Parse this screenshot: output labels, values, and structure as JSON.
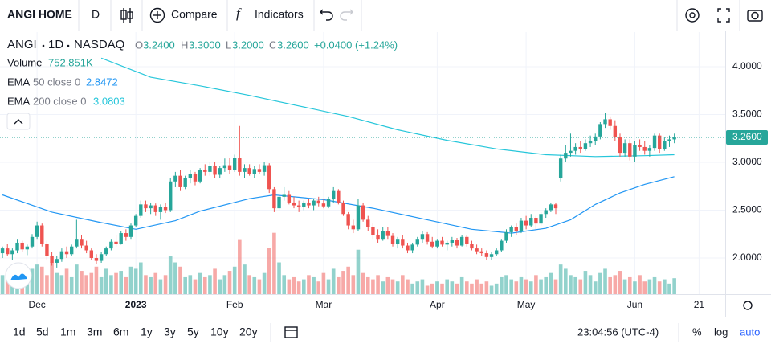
{
  "toolbar": {
    "symbol": "ANGI HOME",
    "interval": "D",
    "compare": "Compare",
    "indicators": "Indicators"
  },
  "legend": {
    "symbol": "ANGI",
    "interval": "1D",
    "exchange": "NASDAQ",
    "o_label": "O",
    "open": "3.2400",
    "h_label": "H",
    "high": "3.3000",
    "l_label": "L",
    "low": "3.2000",
    "c_label": "C",
    "close": "3.2600",
    "change": "+0.0400 (+1.24%)",
    "volume_label": "Volume",
    "volume": "752.851K",
    "ema50_label": "EMA",
    "ema50_params": "50 close 0",
    "ema50_value": "2.8472",
    "ema200_label": "EMA",
    "ema200_params": "200 close 0",
    "ema200_value": "3.0803"
  },
  "bottom": {
    "ranges": [
      "1d",
      "5d",
      "1m",
      "3m",
      "6m",
      "1y",
      "3y",
      "5y",
      "10y",
      "20y"
    ],
    "clock": "23:04:56 (UTC-4)",
    "percent": "%",
    "log": "log",
    "auto": "auto"
  },
  "chart_data": {
    "type": "candlestick",
    "up_color": "#26a69a",
    "down_color": "#ef5350",
    "ylim": [
      1.622,
      4.361
    ],
    "yticks": [
      {
        "value": 2,
        "label": "2.0000"
      },
      {
        "value": 2.5,
        "label": "2.5000"
      },
      {
        "value": 3,
        "label": "3.0000"
      },
      {
        "value": 3.5,
        "label": "3.5000"
      },
      {
        "value": 4,
        "label": "4.0000"
      }
    ],
    "xlim": [
      -0.5,
      146.3
    ],
    "xticks": [
      {
        "value": 7,
        "label": "Dec"
      },
      {
        "value": 27,
        "label": "2023"
      },
      {
        "value": 47,
        "label": "Feb"
      },
      {
        "value": 65,
        "label": "Mar"
      },
      {
        "value": 88,
        "label": "Apr"
      },
      {
        "value": 106,
        "label": "May"
      },
      {
        "value": 128,
        "label": "Jun"
      },
      {
        "value": 141,
        "label": "21"
      }
    ],
    "grid": true,
    "ohlc": [
      [
        2.05,
        2.12,
        2.0,
        2.1
      ],
      [
        2.1,
        2.15,
        2.02,
        2.04
      ],
      [
        2.04,
        2.1,
        1.98,
        2.08
      ],
      [
        2.08,
        2.2,
        2.05,
        2.16
      ],
      [
        2.16,
        2.18,
        2.06,
        2.09
      ],
      [
        2.09,
        2.14,
        2.03,
        2.12
      ],
      [
        2.12,
        2.25,
        2.1,
        2.22
      ],
      [
        2.22,
        2.38,
        2.2,
        2.34
      ],
      [
        2.34,
        2.36,
        2.12,
        2.15
      ],
      [
        2.15,
        2.18,
        1.98,
        2.02
      ],
      [
        2.02,
        2.06,
        1.92,
        1.95
      ],
      [
        1.95,
        2.02,
        1.9,
        1.99
      ],
      [
        1.99,
        2.1,
        1.96,
        2.07
      ],
      [
        2.07,
        2.12,
        2.0,
        2.04
      ],
      [
        2.04,
        2.14,
        2.02,
        2.12
      ],
      [
        2.12,
        2.4,
        2.1,
        2.2
      ],
      [
        2.2,
        2.24,
        2.1,
        2.13
      ],
      [
        2.13,
        2.18,
        2.05,
        2.08
      ],
      [
        2.08,
        2.1,
        1.98,
        2.0
      ],
      [
        2.0,
        2.04,
        1.94,
        1.97
      ],
      [
        1.97,
        2.06,
        1.95,
        2.04
      ],
      [
        2.04,
        2.12,
        2.02,
        2.1
      ],
      [
        2.1,
        2.2,
        2.08,
        2.17
      ],
      [
        2.17,
        2.24,
        2.12,
        2.15
      ],
      [
        2.15,
        2.28,
        2.14,
        2.26
      ],
      [
        2.26,
        2.3,
        2.18,
        2.22
      ],
      [
        2.22,
        2.36,
        2.2,
        2.34
      ],
      [
        2.34,
        2.46,
        2.32,
        2.44
      ],
      [
        2.44,
        2.6,
        2.42,
        2.56
      ],
      [
        2.56,
        2.6,
        2.48,
        2.52
      ],
      [
        2.52,
        2.58,
        2.46,
        2.55
      ],
      [
        2.55,
        2.57,
        2.44,
        2.48
      ],
      [
        2.48,
        2.56,
        2.4,
        2.53
      ],
      [
        2.53,
        2.58,
        2.47,
        2.5
      ],
      [
        2.5,
        2.84,
        2.48,
        2.8
      ],
      [
        2.8,
        2.9,
        2.74,
        2.86
      ],
      [
        2.86,
        2.92,
        2.7,
        2.74
      ],
      [
        2.74,
        2.86,
        2.72,
        2.84
      ],
      [
        2.84,
        2.92,
        2.78,
        2.88
      ],
      [
        2.88,
        2.9,
        2.76,
        2.8
      ],
      [
        2.8,
        2.94,
        2.78,
        2.92
      ],
      [
        2.92,
        2.98,
        2.86,
        2.9
      ],
      [
        2.9,
        3.0,
        2.86,
        2.96
      ],
      [
        2.96,
        3.0,
        2.84,
        2.87
      ],
      [
        2.87,
        2.96,
        2.84,
        2.94
      ],
      [
        2.94,
        3.04,
        2.9,
        2.97
      ],
      [
        2.97,
        3.05,
        2.88,
        2.92
      ],
      [
        2.92,
        3.08,
        2.9,
        3.05
      ],
      [
        3.05,
        3.38,
        2.86,
        2.9
      ],
      [
        2.9,
        2.98,
        2.84,
        2.94
      ],
      [
        2.94,
        2.98,
        2.86,
        2.88
      ],
      [
        2.88,
        2.96,
        2.84,
        2.93
      ],
      [
        2.93,
        2.98,
        2.88,
        2.9
      ],
      [
        2.9,
        3.0,
        2.86,
        2.97
      ],
      [
        2.97,
        2.99,
        2.68,
        2.72
      ],
      [
        2.72,
        2.74,
        2.48,
        2.52
      ],
      [
        2.52,
        2.66,
        2.5,
        2.64
      ],
      [
        2.64,
        2.74,
        2.6,
        2.66
      ],
      [
        2.66,
        2.7,
        2.56,
        2.58
      ],
      [
        2.58,
        2.64,
        2.52,
        2.55
      ],
      [
        2.55,
        2.6,
        2.48,
        2.53
      ],
      [
        2.53,
        2.6,
        2.5,
        2.58
      ],
      [
        2.58,
        2.62,
        2.52,
        2.55
      ],
      [
        2.55,
        2.62,
        2.5,
        2.6
      ],
      [
        2.6,
        2.64,
        2.54,
        2.57
      ],
      [
        2.57,
        2.62,
        2.52,
        2.54
      ],
      [
        2.54,
        2.64,
        2.52,
        2.62
      ],
      [
        2.62,
        2.74,
        2.58,
        2.7
      ],
      [
        2.7,
        2.72,
        2.56,
        2.58
      ],
      [
        2.58,
        2.6,
        2.44,
        2.46
      ],
      [
        2.46,
        2.48,
        2.3,
        2.34
      ],
      [
        2.34,
        2.4,
        2.26,
        2.3
      ],
      [
        2.3,
        2.62,
        2.28,
        2.55
      ],
      [
        2.55,
        2.58,
        2.38,
        2.4
      ],
      [
        2.4,
        2.44,
        2.28,
        2.32
      ],
      [
        2.32,
        2.36,
        2.2,
        2.24
      ],
      [
        2.24,
        2.3,
        2.16,
        2.2
      ],
      [
        2.2,
        2.32,
        2.18,
        2.28
      ],
      [
        2.28,
        2.32,
        2.2,
        2.23
      ],
      [
        2.23,
        2.26,
        2.12,
        2.15
      ],
      [
        2.15,
        2.22,
        2.1,
        2.2
      ],
      [
        2.2,
        2.24,
        2.1,
        2.13
      ],
      [
        2.13,
        2.16,
        2.05,
        2.08
      ],
      [
        2.08,
        2.16,
        2.05,
        2.14
      ],
      [
        2.14,
        2.22,
        2.12,
        2.2
      ],
      [
        2.2,
        2.28,
        2.16,
        2.25
      ],
      [
        2.25,
        2.27,
        2.14,
        2.17
      ],
      [
        2.17,
        2.22,
        2.1,
        2.12
      ],
      [
        2.12,
        2.2,
        2.1,
        2.18
      ],
      [
        2.18,
        2.22,
        2.12,
        2.14
      ],
      [
        2.14,
        2.18,
        2.08,
        2.16
      ],
      [
        2.16,
        2.22,
        2.12,
        2.19
      ],
      [
        2.19,
        2.21,
        2.1,
        2.13
      ],
      [
        2.13,
        2.24,
        2.12,
        2.22
      ],
      [
        2.22,
        2.24,
        2.12,
        2.15
      ],
      [
        2.15,
        2.18,
        2.08,
        2.1
      ],
      [
        2.1,
        2.14,
        2.04,
        2.07
      ],
      [
        2.07,
        2.1,
        2.02,
        2.05
      ],
      [
        2.05,
        2.08,
        1.98,
        2.01
      ],
      [
        2.01,
        2.06,
        1.98,
        2.04
      ],
      [
        2.04,
        2.1,
        2.02,
        2.08
      ],
      [
        2.08,
        2.2,
        2.06,
        2.18
      ],
      [
        2.18,
        2.3,
        2.16,
        2.27
      ],
      [
        2.27,
        2.34,
        2.22,
        2.32
      ],
      [
        2.32,
        2.36,
        2.24,
        2.28
      ],
      [
        2.28,
        2.42,
        2.26,
        2.39
      ],
      [
        2.39,
        2.44,
        2.3,
        2.34
      ],
      [
        2.34,
        2.46,
        2.32,
        2.42
      ],
      [
        2.42,
        2.44,
        2.3,
        2.36
      ],
      [
        2.36,
        2.48,
        2.34,
        2.46
      ],
      [
        2.46,
        2.52,
        2.42,
        2.5
      ],
      [
        2.5,
        2.58,
        2.48,
        2.56
      ],
      [
        2.56,
        2.58,
        2.46,
        2.52
      ],
      [
        2.84,
        3.08,
        2.8,
        3.04
      ],
      [
        3.04,
        3.18,
        3.0,
        3.1
      ],
      [
        3.1,
        3.3,
        3.06,
        3.12
      ],
      [
        3.12,
        3.2,
        3.08,
        3.16
      ],
      [
        3.16,
        3.22,
        3.1,
        3.14
      ],
      [
        3.14,
        3.24,
        3.12,
        3.2
      ],
      [
        3.2,
        3.28,
        3.16,
        3.22
      ],
      [
        3.22,
        3.3,
        3.18,
        3.27
      ],
      [
        3.27,
        3.42,
        3.24,
        3.4
      ],
      [
        3.4,
        3.52,
        3.36,
        3.45
      ],
      [
        3.45,
        3.48,
        3.34,
        3.38
      ],
      [
        3.38,
        3.44,
        3.22,
        3.26
      ],
      [
        3.26,
        3.3,
        3.06,
        3.1
      ],
      [
        3.1,
        3.24,
        3.06,
        3.2
      ],
      [
        3.2,
        3.24,
        3.02,
        3.06
      ],
      [
        3.06,
        3.22,
        3.0,
        3.18
      ],
      [
        3.18,
        3.24,
        3.12,
        3.16
      ],
      [
        3.16,
        3.22,
        3.08,
        3.12
      ],
      [
        3.12,
        3.18,
        3.06,
        3.15
      ],
      [
        3.15,
        3.3,
        3.12,
        3.28
      ],
      [
        3.28,
        3.3,
        3.1,
        3.14
      ],
      [
        3.14,
        3.26,
        3.12,
        3.22
      ],
      [
        3.22,
        3.28,
        3.16,
        3.24
      ],
      [
        3.24,
        3.3,
        3.2,
        3.26
      ]
    ],
    "volume_lim": [
      0,
      3800
    ],
    "volume": [
      900,
      1100,
      800,
      1000,
      700,
      600,
      1200,
      1400,
      1300,
      900,
      1500,
      1000,
      900,
      1200,
      800,
      1400,
      1100,
      900,
      1000,
      1300,
      800,
      1200,
      900,
      1000,
      1100,
      800,
      1300,
      1200,
      1500,
      900,
      800,
      1000,
      700,
      900,
      1800,
      1500,
      1300,
      800,
      900,
      700,
      1000,
      800,
      900,
      1200,
      700,
      900,
      1100,
      1300,
      2600,
      1400,
      900,
      800,
      700,
      1000,
      2200,
      2900,
      1500,
      900,
      700,
      800,
      600,
      700,
      900,
      800,
      600,
      1000,
      700,
      1200,
      800,
      1100,
      1300,
      900,
      2100,
      1000,
      800,
      700,
      900,
      600,
      800,
      700,
      600,
      900,
      700,
      500,
      600,
      700,
      400,
      500,
      600,
      500,
      700,
      600,
      500,
      800,
      600,
      500,
      700,
      500,
      600,
      400,
      500,
      800,
      900,
      700,
      600,
      800,
      700,
      600,
      900,
      700,
      800,
      1000,
      700,
      1400,
      1200,
      900,
      800,
      700,
      1100,
      900,
      600,
      1000,
      1200,
      800,
      900,
      1100,
      700,
      800,
      600,
      900,
      600,
      700,
      800,
      600,
      700,
      500,
      752.851
    ],
    "series": [
      {
        "name": "EMA 50",
        "color": "#2196f3",
        "x": [
          0,
          10,
          20,
          27,
          35,
          40,
          50,
          55,
          65,
          75,
          85,
          95,
          103,
          110,
          115,
          120,
          125,
          130,
          136
        ],
        "values": [
          2.66,
          2.48,
          2.37,
          2.3,
          2.39,
          2.49,
          2.62,
          2.66,
          2.61,
          2.52,
          2.41,
          2.3,
          2.26,
          2.31,
          2.4,
          2.56,
          2.68,
          2.77,
          2.85
        ]
      },
      {
        "name": "EMA 200",
        "color": "#26c6da",
        "x": [
          20,
          30,
          40,
          50,
          60,
          70,
          80,
          90,
          100,
          110,
          120,
          130,
          136
        ],
        "values": [
          4.09,
          3.89,
          3.8,
          3.7,
          3.59,
          3.48,
          3.34,
          3.23,
          3.14,
          3.08,
          3.06,
          3.07,
          3.08
        ]
      }
    ]
  }
}
